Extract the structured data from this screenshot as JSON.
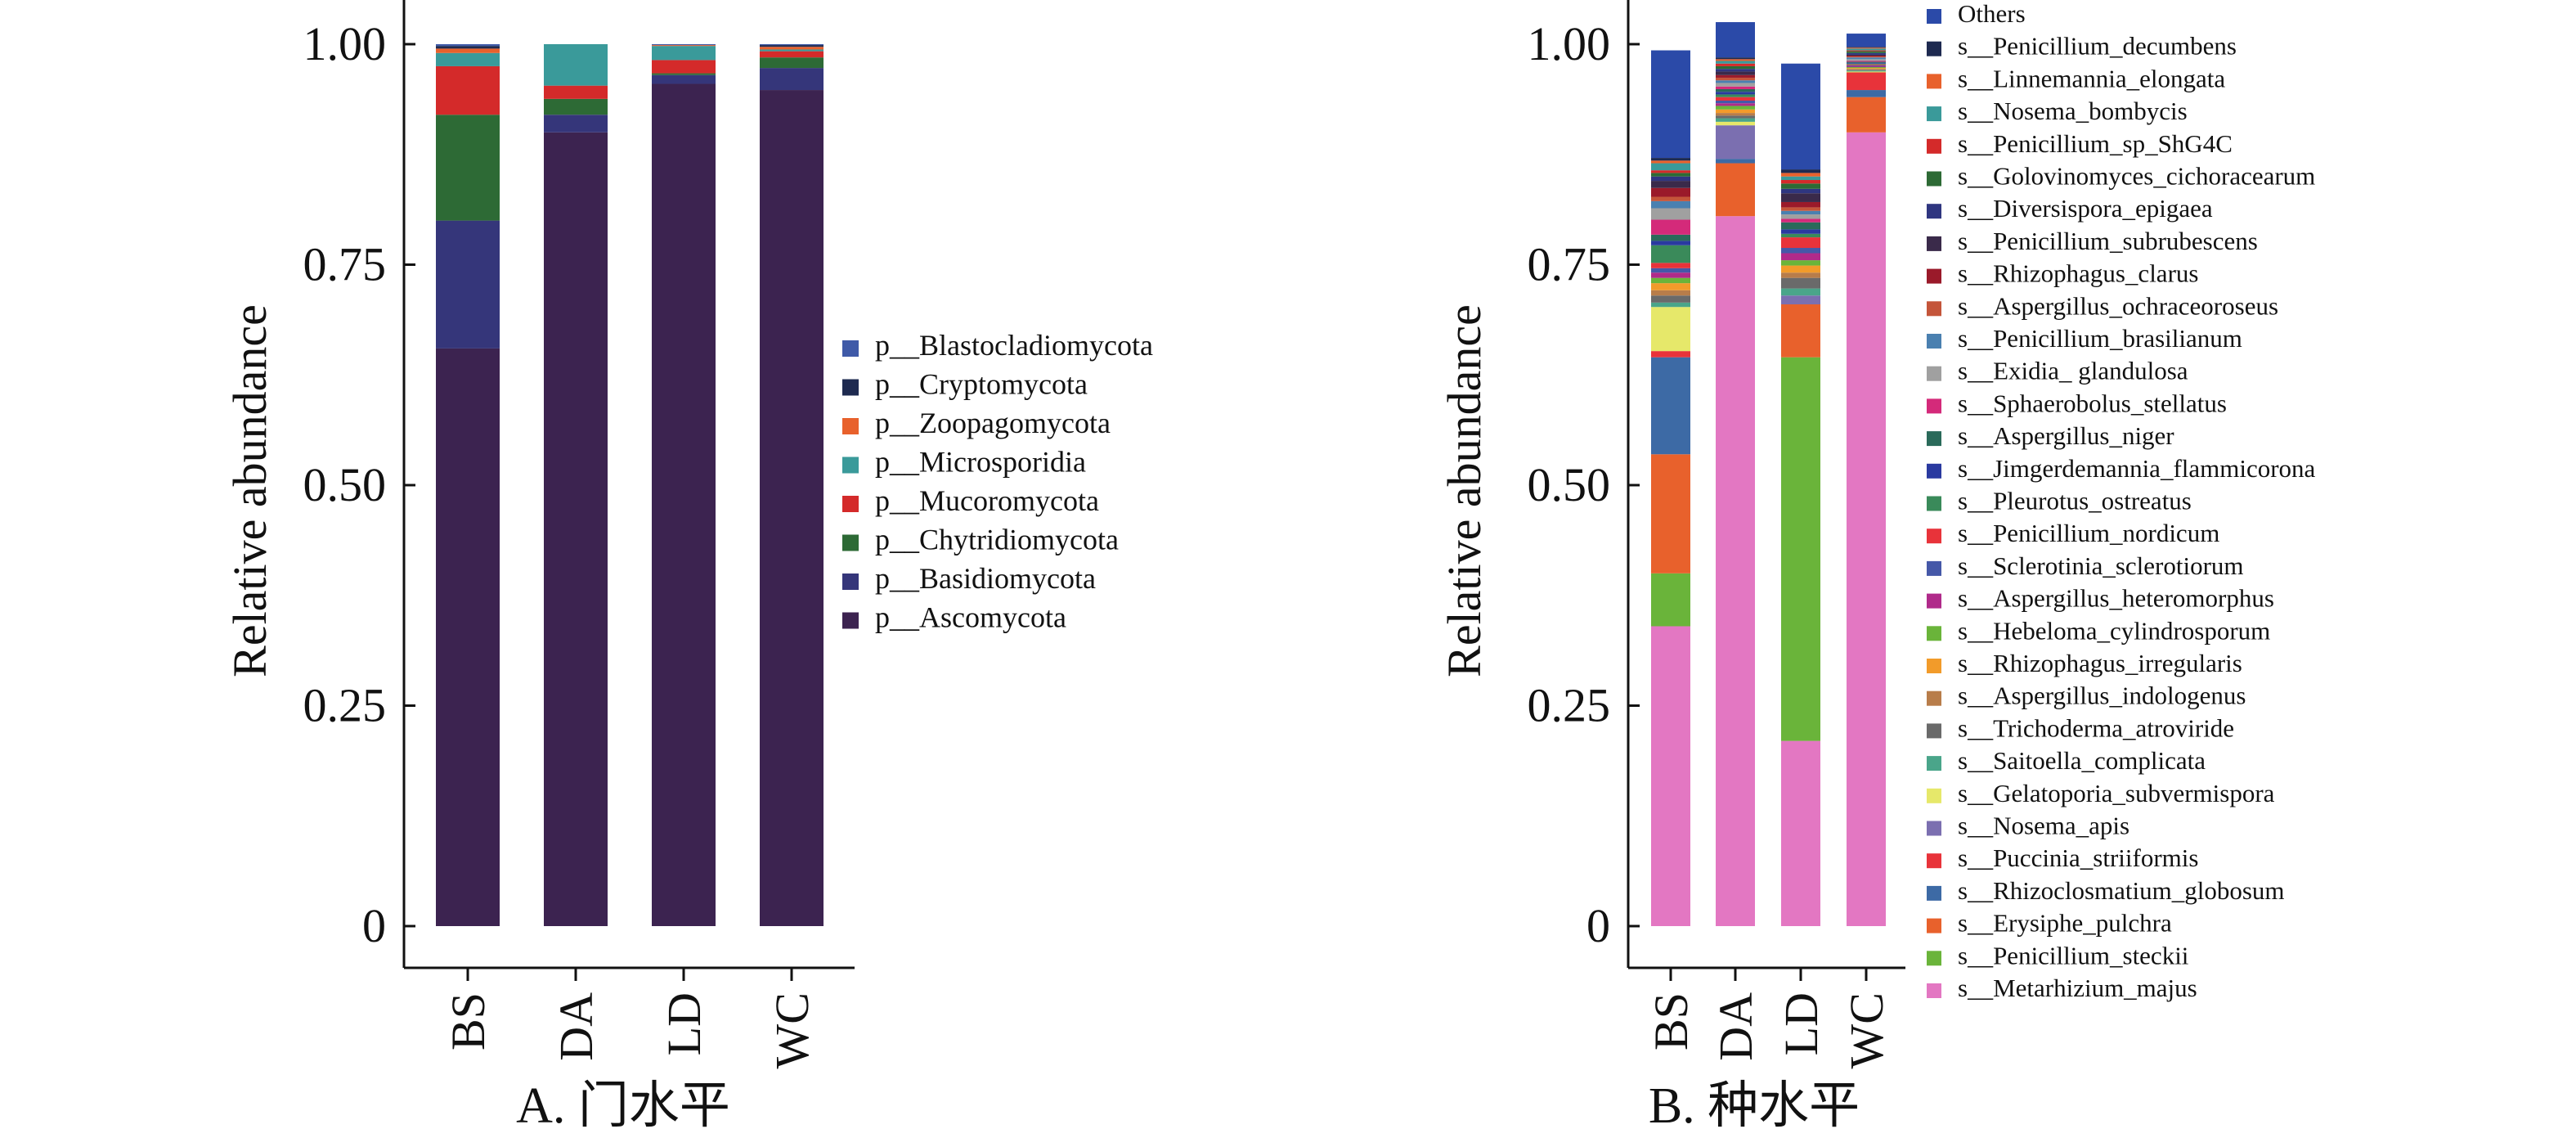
{
  "chart_data": [
    {
      "type": "bar",
      "stacked": true,
      "panel_label": "A. 门水平",
      "categories": [
        "BS",
        "DA",
        "LD",
        "WC"
      ],
      "ylabel": "Relative abundance",
      "ylim": [
        0,
        1
      ],
      "yticks": [
        "0",
        "0.25",
        "0.50",
        "0.75",
        "1.00"
      ],
      "legend_position": "right",
      "series": [
        {
          "name": "p__Ascomycota",
          "color": "#3c2350",
          "values": [
            0.655,
            0.9,
            0.955,
            0.948
          ]
        },
        {
          "name": "p__Basidiomycota",
          "color": "#35367a",
          "values": [
            0.145,
            0.02,
            0.01,
            0.025
          ]
        },
        {
          "name": "p__Chytridiomycota",
          "color": "#2d6a35",
          "values": [
            0.12,
            0.018,
            0.002,
            0.012
          ]
        },
        {
          "name": "p__Mucoromycota",
          "color": "#d42a2a",
          "values": [
            0.055,
            0.015,
            0.015,
            0.007
          ]
        },
        {
          "name": "p__Microsporidia",
          "color": "#3a9a9a",
          "values": [
            0.015,
            0.047,
            0.016,
            0.002
          ]
        },
        {
          "name": "p__Zoopagomycota",
          "color": "#e8612c",
          "values": [
            0.005,
            0.0,
            0.001,
            0.003
          ]
        },
        {
          "name": "p__Cryptomycota",
          "color": "#1e2a50",
          "values": [
            0.003,
            0.0,
            0.0,
            0.002
          ]
        },
        {
          "name": "p__Blastocladiomycota",
          "color": "#3f5aa8",
          "values": [
            0.002,
            0.0,
            0.001,
            0.001
          ]
        }
      ]
    },
    {
      "type": "bar",
      "stacked": true,
      "panel_label": "B. 种水平",
      "categories": [
        "BS",
        "DA",
        "LD",
        "WC"
      ],
      "ylabel": "Relative abundance",
      "ylim": [
        0,
        1
      ],
      "yticks": [
        "0",
        "0.25",
        "0.50",
        "0.75",
        "1.00"
      ],
      "legend_position": "right",
      "series": [
        {
          "name": "s__Metarhizium_majus",
          "color": "#e377c2",
          "values": [
            0.34,
            0.805,
            0.21,
            0.9
          ]
        },
        {
          "name": "s__Penicillium_steckii",
          "color": "#6ab43a",
          "values": [
            0.06,
            0.0,
            0.435,
            0.0
          ]
        },
        {
          "name": "s__Erysiphe_pulchra",
          "color": "#e8612c",
          "values": [
            0.135,
            0.06,
            0.06,
            0.04
          ]
        },
        {
          "name": "s__Rhizoclosmatium_globosum",
          "color": "#3d6aa5",
          "values": [
            0.11,
            0.005,
            0.0,
            0.008
          ]
        },
        {
          "name": "s__Puccinia_striiformis",
          "color": "#e8333a",
          "values": [
            0.007,
            0.0,
            0.0,
            0.02
          ]
        },
        {
          "name": "s__Nosema_apis",
          "color": "#7b6fb0",
          "values": [
            0.0,
            0.038,
            0.01,
            0.0
          ]
        },
        {
          "name": "s__Gelatoporia_subvermispora",
          "color": "#e6e86a",
          "values": [
            0.05,
            0.004,
            0.0,
            0.001
          ]
        },
        {
          "name": "s__Saitoella_complicata",
          "color": "#4aa58a",
          "values": [
            0.005,
            0.004,
            0.008,
            0.001
          ]
        },
        {
          "name": "s__Trichoderma_atroviride",
          "color": "#6a6a6a",
          "values": [
            0.008,
            0.003,
            0.012,
            0.001
          ]
        },
        {
          "name": "s__Aspergillus_indologenus",
          "color": "#b87d4a",
          "values": [
            0.006,
            0.003,
            0.006,
            0.001
          ]
        },
        {
          "name": "s__Rhizophagus_irregularis",
          "color": "#f29b2a",
          "values": [
            0.008,
            0.004,
            0.008,
            0.001
          ]
        },
        {
          "name": "s__Hebeloma_cylindrosporum",
          "color": "#6ab43a",
          "values": [
            0.006,
            0.004,
            0.006,
            0.001
          ]
        },
        {
          "name": "s__Aspergillus_heteromorphus",
          "color": "#b02a8a",
          "values": [
            0.006,
            0.003,
            0.008,
            0.001
          ]
        },
        {
          "name": "s__Sclerotinia_sclerotiorum",
          "color": "#4558a8",
          "values": [
            0.005,
            0.003,
            0.006,
            0.001
          ]
        },
        {
          "name": "s__Penicillium_nordicum",
          "color": "#e8333a",
          "values": [
            0.006,
            0.004,
            0.012,
            0.001
          ]
        },
        {
          "name": "s__Pleurotus_ostreatus",
          "color": "#3a8a5a",
          "values": [
            0.02,
            0.003,
            0.004,
            0.001
          ]
        },
        {
          "name": "s__Jimgerdemannia_flammicorona",
          "color": "#2a3aa0",
          "values": [
            0.005,
            0.003,
            0.005,
            0.001
          ]
        },
        {
          "name": "s__Aspergillus_niger",
          "color": "#2a6a5a",
          "values": [
            0.007,
            0.003,
            0.008,
            0.001
          ]
        },
        {
          "name": "s__Sphaerobolus_stellatus",
          "color": "#d42a7a",
          "values": [
            0.017,
            0.003,
            0.004,
            0.001
          ]
        },
        {
          "name": "s__Exidia_ glandulosa",
          "color": "#a0a0a0",
          "values": [
            0.013,
            0.004,
            0.005,
            0.002
          ]
        },
        {
          "name": "s__Penicillium_brasilianum",
          "color": "#4a80b0",
          "values": [
            0.008,
            0.003,
            0.004,
            0.002
          ]
        },
        {
          "name": "s__Aspergillus_ochraceoroseus",
          "color": "#c4553a",
          "values": [
            0.005,
            0.003,
            0.004,
            0.001
          ]
        },
        {
          "name": "s__Rhizophagus_clarus",
          "color": "#9a1a2a",
          "values": [
            0.01,
            0.003,
            0.006,
            0.001
          ]
        },
        {
          "name": "s__Penicillium_subrubescens",
          "color": "#3a2a4a",
          "values": [
            0.008,
            0.004,
            0.01,
            0.001
          ]
        },
        {
          "name": "s__Diversispora_epigaea",
          "color": "#2f3680",
          "values": [
            0.005,
            0.003,
            0.005,
            0.002
          ]
        },
        {
          "name": "s__Golovinomyces_cichoracearum",
          "color": "#2d6a35",
          "values": [
            0.004,
            0.003,
            0.006,
            0.002
          ]
        },
        {
          "name": "s__Penicillium_sp_ShG4C",
          "color": "#d42a2a",
          "values": [
            0.003,
            0.003,
            0.004,
            0.001
          ]
        },
        {
          "name": "s__Nosema_bombycis",
          "color": "#3a9a9a",
          "values": [
            0.008,
            0.003,
            0.004,
            0.002
          ]
        },
        {
          "name": "s__Linnemannia_elongata",
          "color": "#e8612c",
          "values": [
            0.003,
            0.002,
            0.004,
            0.001
          ]
        },
        {
          "name": "s__Penicillium_decumbens",
          "color": "#1e2a50",
          "values": [
            0.003,
            0.002,
            0.004,
            0.001
          ]
        },
        {
          "name": "Others",
          "color": "#2b4aa8",
          "values": [
            0.122,
            0.04,
            0.12,
            0.015
          ]
        }
      ]
    }
  ]
}
